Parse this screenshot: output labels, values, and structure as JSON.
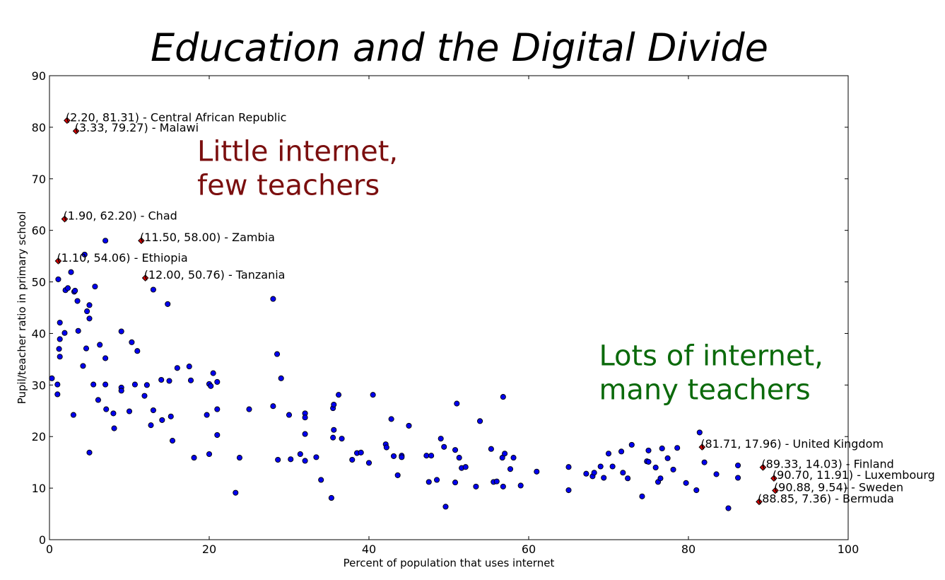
{
  "chart_data": {
    "type": "scatter",
    "title": "Education and the Digital Divide",
    "xlabel": "Percent of population that uses internet",
    "ylabel": "Pupil/teacher ratio in primary school",
    "xlim": [
      0,
      100
    ],
    "ylim": [
      0,
      90
    ],
    "xticks": [
      0,
      20,
      40,
      60,
      80,
      100
    ],
    "yticks": [
      0,
      10,
      20,
      30,
      40,
      50,
      60,
      70,
      80,
      90
    ],
    "grid": false,
    "colors": {
      "point": "#0000ee",
      "highlight": "#d40000",
      "annot_low": "#7b0f0f",
      "annot_high": "#0b6a0b"
    },
    "annotations": [
      {
        "lines": [
          "Little internet,",
          "few teachers"
        ],
        "x": 18.5,
        "y": 73.5,
        "color": "#7b0f0f"
      },
      {
        "lines": [
          "Lots of internet,",
          "many teachers"
        ],
        "x": 68.8,
        "y": 33.8,
        "color": "#0b6a0b"
      }
    ],
    "highlighted": [
      {
        "x": 2.2,
        "y": 81.31,
        "label": "(2.20, 81.31) - Central African Republic"
      },
      {
        "x": 3.33,
        "y": 79.27,
        "label": "(3.33, 79.27) - Malawi"
      },
      {
        "x": 1.9,
        "y": 62.2,
        "label": "(1.90, 62.20) - Chad"
      },
      {
        "x": 11.5,
        "y": 58.0,
        "label": "(11.50, 58.00) - Zambia"
      },
      {
        "x": 1.1,
        "y": 54.06,
        "label": "(1.10, 54.06) - Ethiopia"
      },
      {
        "x": 12.0,
        "y": 50.76,
        "label": "(12.00, 50.76) - Tanzania"
      },
      {
        "x": 81.71,
        "y": 17.96,
        "label": "(81.71, 17.96) - United Kingdom"
      },
      {
        "x": 89.33,
        "y": 14.03,
        "label": "(89.33, 14.03) - Finland"
      },
      {
        "x": 90.7,
        "y": 11.91,
        "label": "(90.70, 11.91) - Luxembourg"
      },
      {
        "x": 90.88,
        "y": 9.54,
        "label": "(90.88, 9.54) - Sweden"
      },
      {
        "x": 88.85,
        "y": 7.36,
        "label": "(88.85, 7.36) - Bermuda"
      }
    ],
    "points": [
      [
        0.3,
        31.3
      ],
      [
        1.0,
        30.1
      ],
      [
        1.0,
        28.2
      ],
      [
        1.1,
        50.5
      ],
      [
        1.3,
        42.1
      ],
      [
        1.3,
        38.9
      ],
      [
        1.2,
        37.0
      ],
      [
        1.3,
        35.5
      ],
      [
        1.9,
        40.1
      ],
      [
        2.0,
        48.4
      ],
      [
        2.3,
        48.8
      ],
      [
        2.7,
        51.9
      ],
      [
        3.1,
        48.1
      ],
      [
        3.2,
        48.3
      ],
      [
        3.5,
        46.3
      ],
      [
        3.6,
        40.5
      ],
      [
        3.0,
        24.2
      ],
      [
        4.2,
        33.7
      ],
      [
        4.4,
        55.3
      ],
      [
        4.6,
        37.1
      ],
      [
        4.7,
        44.3
      ],
      [
        5.0,
        45.5
      ],
      [
        5.0,
        42.9
      ],
      [
        5.0,
        16.9
      ],
      [
        5.5,
        30.1
      ],
      [
        5.7,
        49.1
      ],
      [
        6.1,
        27.1
      ],
      [
        6.3,
        37.8
      ],
      [
        7.0,
        58.0
      ],
      [
        7.0,
        35.2
      ],
      [
        7.0,
        30.1
      ],
      [
        7.1,
        25.3
      ],
      [
        8.0,
        24.5
      ],
      [
        8.1,
        21.6
      ],
      [
        9.0,
        40.4
      ],
      [
        9.0,
        29.5
      ],
      [
        9.0,
        28.9
      ],
      [
        10.0,
        24.9
      ],
      [
        10.3,
        38.3
      ],
      [
        10.7,
        30.1
      ],
      [
        11.0,
        36.6
      ],
      [
        11.9,
        27.9
      ],
      [
        12.2,
        30.0
      ],
      [
        12.7,
        22.2
      ],
      [
        13.0,
        48.5
      ],
      [
        13.0,
        25.1
      ],
      [
        14.0,
        31.0
      ],
      [
        14.1,
        23.2
      ],
      [
        14.8,
        45.7
      ],
      [
        15.0,
        30.8
      ],
      [
        15.2,
        23.9
      ],
      [
        15.4,
        19.2
      ],
      [
        16.0,
        33.3
      ],
      [
        17.5,
        33.6
      ],
      [
        17.7,
        30.9
      ],
      [
        18.1,
        15.9
      ],
      [
        19.7,
        24.2
      ],
      [
        20.0,
        30.2
      ],
      [
        20.0,
        16.6
      ],
      [
        20.2,
        29.8
      ],
      [
        20.5,
        32.3
      ],
      [
        21.0,
        30.6
      ],
      [
        21.0,
        25.3
      ],
      [
        21.0,
        20.3
      ],
      [
        23.3,
        9.1
      ],
      [
        23.8,
        15.9
      ],
      [
        25.0,
        25.3
      ],
      [
        28.0,
        46.7
      ],
      [
        28.0,
        25.9
      ],
      [
        28.5,
        36.0
      ],
      [
        28.6,
        15.5
      ],
      [
        29.0,
        31.3
      ],
      [
        30.0,
        24.2
      ],
      [
        30.2,
        15.6
      ],
      [
        31.4,
        16.6
      ],
      [
        32.0,
        24.5
      ],
      [
        32.0,
        23.7
      ],
      [
        32.0,
        20.5
      ],
      [
        32.0,
        15.3
      ],
      [
        33.4,
        16.0
      ],
      [
        34.0,
        11.6
      ],
      [
        35.3,
        8.1
      ],
      [
        35.5,
        25.5
      ],
      [
        35.6,
        26.2
      ],
      [
        35.6,
        21.3
      ],
      [
        35.5,
        19.8
      ],
      [
        36.2,
        28.1
      ],
      [
        36.6,
        19.6
      ],
      [
        37.9,
        15.5
      ],
      [
        38.5,
        16.8
      ],
      [
        39.0,
        16.9
      ],
      [
        40.0,
        14.9
      ],
      [
        40.5,
        28.1
      ],
      [
        42.1,
        18.5
      ],
      [
        42.2,
        17.9
      ],
      [
        42.8,
        23.4
      ],
      [
        43.1,
        16.2
      ],
      [
        43.6,
        12.5
      ],
      [
        44.1,
        16.3
      ],
      [
        44.1,
        16.0
      ],
      [
        45.0,
        22.1
      ],
      [
        47.2,
        16.3
      ],
      [
        47.5,
        11.2
      ],
      [
        47.8,
        16.3
      ],
      [
        48.5,
        11.6
      ],
      [
        49.0,
        19.6
      ],
      [
        49.4,
        18.0
      ],
      [
        49.6,
        6.4
      ],
      [
        50.8,
        17.4
      ],
      [
        50.8,
        11.1
      ],
      [
        51.0,
        26.4
      ],
      [
        51.3,
        15.9
      ],
      [
        51.6,
        13.9
      ],
      [
        52.1,
        14.1
      ],
      [
        53.4,
        10.3
      ],
      [
        53.9,
        23.0
      ],
      [
        55.3,
        17.6
      ],
      [
        55.6,
        11.2
      ],
      [
        56.0,
        11.3
      ],
      [
        56.7,
        15.9
      ],
      [
        56.8,
        10.3
      ],
      [
        56.8,
        27.7
      ],
      [
        57.0,
        16.7
      ],
      [
        57.7,
        13.7
      ],
      [
        58.1,
        15.9
      ],
      [
        59.0,
        10.5
      ],
      [
        61.0,
        13.2
      ],
      [
        65.0,
        14.1
      ],
      [
        65.0,
        9.6
      ],
      [
        67.2,
        12.8
      ],
      [
        68.0,
        12.3
      ],
      [
        68.2,
        13.0
      ],
      [
        69.0,
        14.2
      ],
      [
        69.4,
        12.0
      ],
      [
        70.0,
        16.7
      ],
      [
        70.5,
        14.2
      ],
      [
        71.6,
        17.1
      ],
      [
        71.8,
        13.0
      ],
      [
        72.4,
        11.9
      ],
      [
        72.9,
        18.4
      ],
      [
        74.2,
        8.4
      ],
      [
        74.8,
        15.2
      ],
      [
        75.0,
        15.1
      ],
      [
        75.0,
        17.3
      ],
      [
        75.9,
        14.0
      ],
      [
        76.2,
        11.2
      ],
      [
        76.5,
        11.9
      ],
      [
        76.7,
        17.7
      ],
      [
        77.4,
        15.8
      ],
      [
        78.1,
        13.6
      ],
      [
        78.6,
        17.8
      ],
      [
        79.7,
        11.0
      ],
      [
        81.0,
        9.6
      ],
      [
        81.4,
        20.8
      ],
      [
        82.0,
        15.0
      ],
      [
        83.5,
        12.7
      ],
      [
        85.0,
        6.1
      ],
      [
        86.2,
        14.4
      ],
      [
        86.2,
        12.0
      ]
    ]
  }
}
